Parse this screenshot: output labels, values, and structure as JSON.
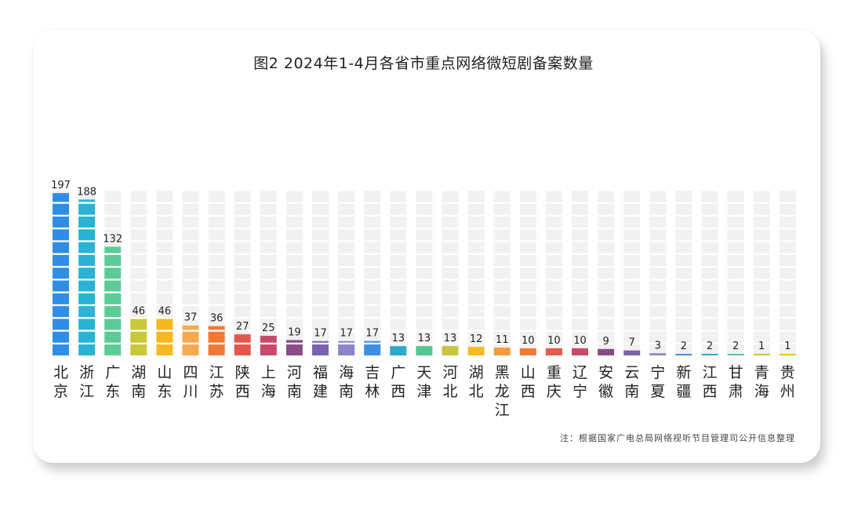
{
  "chart_data": {
    "type": "bar",
    "title": "图2  2024年1-4月各省市重点网络微短剧备案数量",
    "note": "注：根据国家广电总局网络视听节目管理司公开信息整理",
    "categories": [
      "北京",
      "浙江",
      "广东",
      "湖南",
      "山东",
      "四川",
      "江苏",
      "陕西",
      "上海",
      "河南",
      "福建",
      "海南",
      "吉林",
      "广西",
      "天津",
      "河北",
      "湖北",
      "黑龙江",
      "山西",
      "重庆",
      "辽宁",
      "安徽",
      "云南",
      "宁夏",
      "新疆",
      "江西",
      "甘肃",
      "青海",
      "贵州"
    ],
    "values": [
      197,
      188,
      132,
      46,
      46,
      37,
      36,
      27,
      25,
      19,
      17,
      17,
      17,
      13,
      13,
      13,
      12,
      11,
      10,
      10,
      10,
      9,
      7,
      3,
      2,
      2,
      2,
      1,
      1
    ],
    "colors": [
      "#2f8de4",
      "#2ab3d2",
      "#5ccb96",
      "#c9c83a",
      "#f6b81f",
      "#f7a950",
      "#ee7a33",
      "#e4574f",
      "#c74a6c",
      "#8a4d86",
      "#7b62ad",
      "#8a86c9",
      "#3d8fe0",
      "#2fa9cc",
      "#54c792",
      "#c4c540",
      "#f5bb22",
      "#f29c3e",
      "#ee7a34",
      "#e35a4e",
      "#c84a68",
      "#874b84",
      "#7b62ad",
      "#8a86c9",
      "#3d8fe0",
      "#2fa9cc",
      "#54c792",
      "#c4c540",
      "#f5bb22"
    ],
    "ylim": [
      0,
      200
    ],
    "grid": true
  }
}
